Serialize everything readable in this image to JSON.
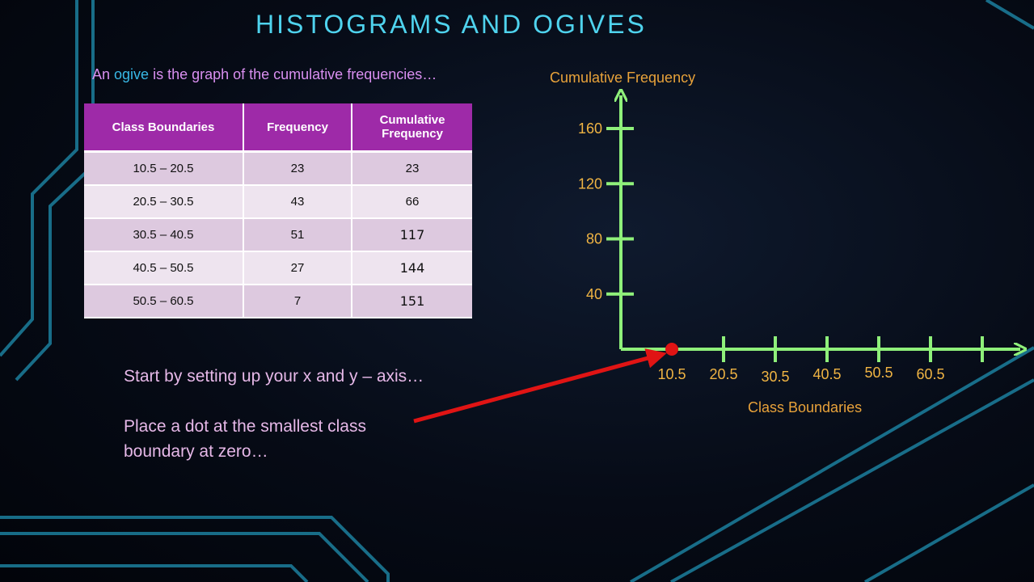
{
  "title": "HISTOGRAMS AND OGIVES",
  "subtitle": {
    "pre": "An ",
    "highlight": "ogive",
    "post": " is the graph of the cumulative frequencies…"
  },
  "table": {
    "headers": [
      "Class Boundaries",
      "Frequency",
      "Cumulative Frequency"
    ],
    "rows": [
      [
        "10.5 – 20.5",
        "23",
        "23"
      ],
      [
        "20.5 – 30.5",
        "43",
        "66"
      ],
      [
        "30.5 – 40.5",
        "51",
        "117"
      ],
      [
        "40.5 – 50.5",
        "27",
        "144"
      ],
      [
        "50.5 – 60.5",
        "7",
        "151"
      ]
    ]
  },
  "notes": {
    "line1": "Start by setting up your x and y – axis…",
    "line2a": "Place a dot at the smallest class",
    "line2b": "boundary at zero…"
  },
  "colors": {
    "axis": "#8ff07a",
    "dot": "#e01414",
    "arrow": "#e01414",
    "tick_label": "#f0b443",
    "header_bg": "#9e2aa8"
  },
  "chart_data": {
    "type": "line",
    "xlabel": "Class Boundaries",
    "ylabel": "Cumulative Frequency",
    "x_ticks": [
      "10.5",
      "20.5",
      "30.5",
      "40.5",
      "50.5",
      "60.5"
    ],
    "y_ticks": [
      "40",
      "80",
      "120",
      "160"
    ],
    "xlim": [
      0.5,
      70.5
    ],
    "ylim": [
      0,
      160
    ],
    "series": [
      {
        "points": [
          {
            "x": 10.5,
            "y": 0
          }
        ]
      }
    ]
  }
}
